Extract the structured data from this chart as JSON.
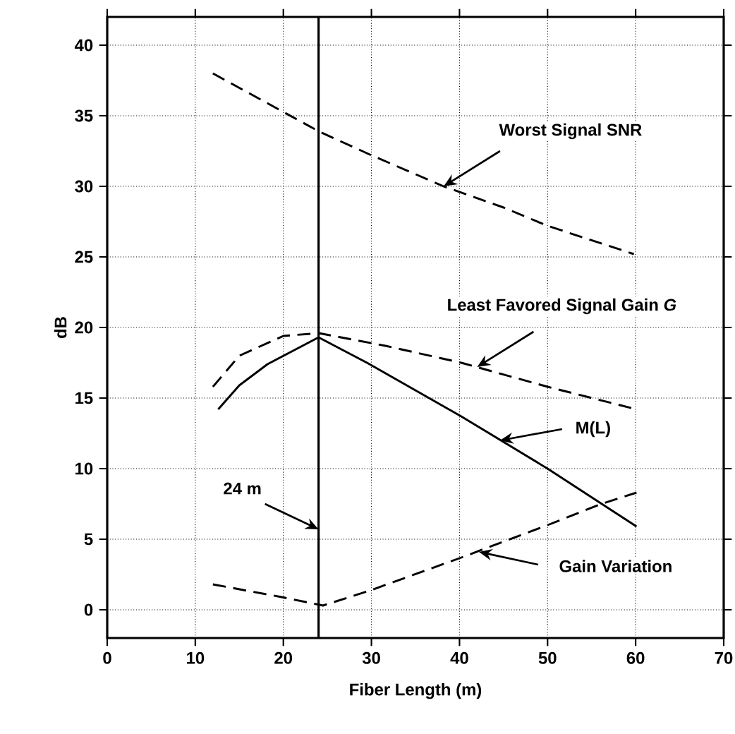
{
  "chart_data": {
    "type": "line",
    "xlabel": "Fiber Length (m)",
    "ylabel": "dB",
    "xlim": [
      0,
      70
    ],
    "xticks": [
      0,
      10,
      20,
      30,
      40,
      50,
      60,
      70
    ],
    "ylim": [
      -2,
      42
    ],
    "yticks": [
      0,
      5,
      10,
      15,
      20,
      25,
      30,
      35,
      40
    ],
    "grid": true,
    "marker": "none",
    "series": [
      {
        "color": "#000000",
        "line_style": "dashed",
        "x": [
          12,
          24,
          30,
          38.2,
          45,
          50,
          59.8
        ],
        "values": [
          38.0,
          33.9,
          32.2,
          30.0,
          28.5,
          27.2,
          25.2
        ]
      },
      {
        "color": "#000000",
        "line_style": "dashed",
        "x": [
          12,
          15,
          20,
          24,
          31.6,
          40.2,
          50,
          60.1
        ],
        "values": [
          15.8,
          18.0,
          19.4,
          19.6,
          18.7,
          17.5,
          15.8,
          14.2
        ]
      },
      {
        "color": "#000000",
        "line_style": "solid",
        "x": [
          12.6,
          15,
          18.2,
          24,
          29.5,
          40.2,
          50,
          60.1
        ],
        "values": [
          14.2,
          15.9,
          17.4,
          19.3,
          17.5,
          13.7,
          10.0,
          5.9
        ]
      },
      {
        "color": "#000000",
        "line_style": "dashed",
        "x": [
          12,
          19.8,
          24.5,
          30,
          40.2,
          50,
          56.1,
          60.1
        ],
        "values": [
          1.8,
          0.9,
          0.3,
          1.4,
          3.7,
          6.0,
          7.5,
          8.3
        ]
      }
    ],
    "ref_lines": [
      {
        "axis": "x",
        "value": 24,
        "color": "#000000",
        "line_style": "solid"
      }
    ],
    "annotations": [
      {
        "text": "Worst Signal SNR",
        "x": 38.2,
        "y": 30.0
      },
      {
        "text": "Least Favored Signal Gain *G*",
        "x": 42,
        "y": 17.2
      },
      {
        "text": "M(L)",
        "x": 44.6,
        "y": 12.0
      },
      {
        "text": "24 m",
        "x": 24,
        "y": 5.7
      },
      {
        "text": "Gain Variation",
        "x": 42.2,
        "y": 4.1
      }
    ]
  }
}
